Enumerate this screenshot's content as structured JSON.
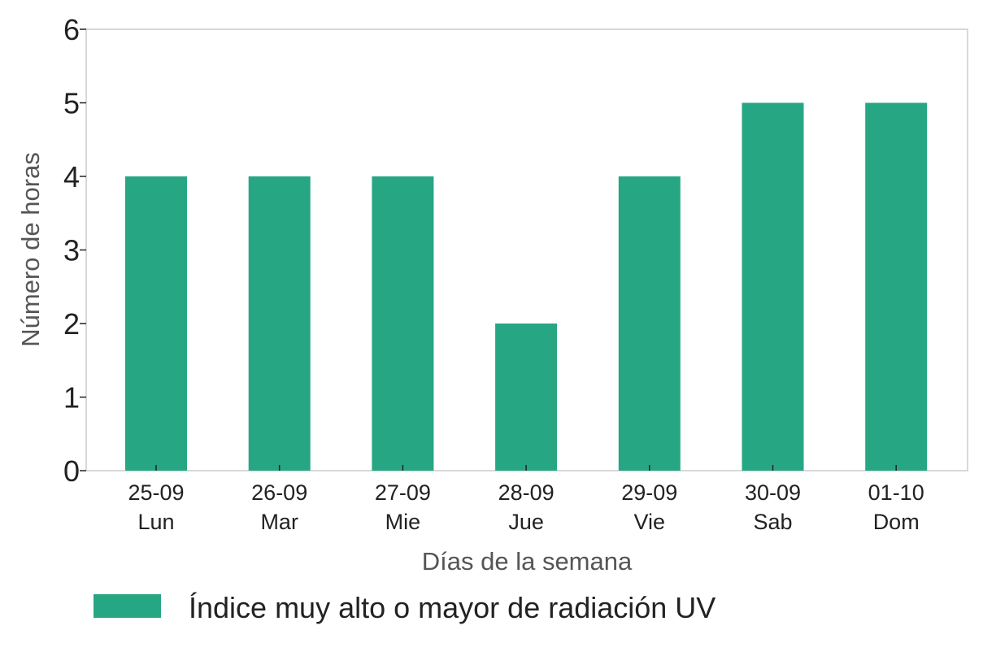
{
  "chart_data": {
    "type": "bar",
    "categories": [
      {
        "date": "25-09",
        "day": "Lun"
      },
      {
        "date": "26-09",
        "day": "Mar"
      },
      {
        "date": "27-09",
        "day": "Mie"
      },
      {
        "date": "28-09",
        "day": "Jue"
      },
      {
        "date": "29-09",
        "day": "Vie"
      },
      {
        "date": "30-09",
        "day": "Sab"
      },
      {
        "date": "01-10",
        "day": "Dom"
      }
    ],
    "series": [
      {
        "name": "Índice muy alto o mayor de radiación UV",
        "values": [
          4,
          4,
          4,
          2,
          4,
          5,
          5
        ],
        "color": "#27a684"
      }
    ],
    "xlabel": "Días de la semana",
    "ylabel": "Número de horas",
    "ylim": [
      0,
      6
    ],
    "yticks": [
      0,
      1,
      2,
      3,
      4,
      5,
      6
    ],
    "grid": false,
    "legend_position": "bottom"
  }
}
